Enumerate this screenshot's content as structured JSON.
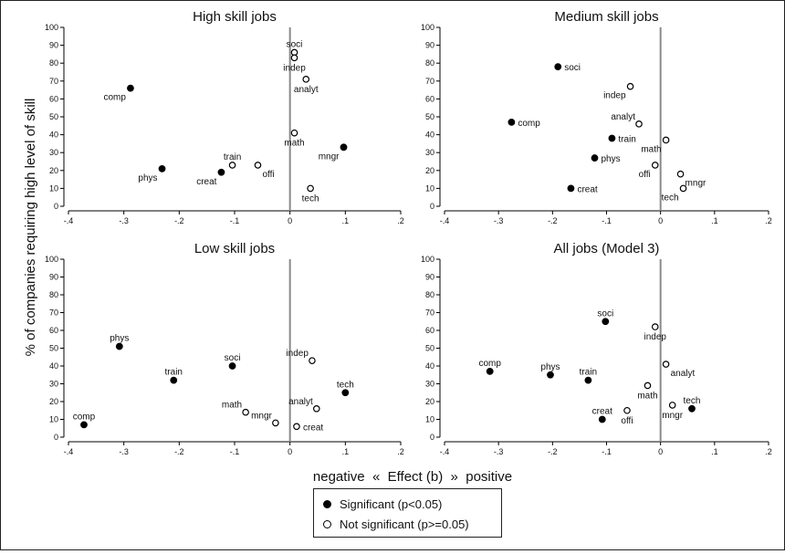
{
  "figure": {
    "y_axis_label": "% of companies requiring high level of skill",
    "x_axis_label": "negative  «  Effect (b)  »  positive"
  },
  "legend": {
    "significant": "Significant (p<0.05)",
    "not_significant": "Not significant (p>=0.05)"
  },
  "chart_data": [
    {
      "type": "scatter",
      "title": "High skill jobs",
      "xlim": [
        -0.4,
        0.2
      ],
      "ylim": [
        0,
        100
      ],
      "x_ticks": [
        "-.4",
        "-.3",
        "-.2",
        "-.1",
        "0",
        ".1",
        ".2"
      ],
      "y_ticks": [
        "0",
        "10",
        "20",
        "30",
        "40",
        "50",
        "60",
        "70",
        "80",
        "90",
        "100"
      ],
      "reference_line_x": 0,
      "points": [
        {
          "label": "soci",
          "x": 0.008,
          "y": 86,
          "significant": false,
          "label_pos": "above"
        },
        {
          "label": "indep",
          "x": 0.008,
          "y": 83,
          "significant": false,
          "label_pos": "below"
        },
        {
          "label": "analyt",
          "x": 0.029,
          "y": 71,
          "significant": false,
          "label_pos": "below"
        },
        {
          "label": "comp",
          "x": -0.288,
          "y": 66,
          "significant": true,
          "label_pos": "belowleft"
        },
        {
          "label": "math",
          "x": 0.008,
          "y": 41,
          "significant": false,
          "label_pos": "below"
        },
        {
          "label": "mngr",
          "x": 0.097,
          "y": 33,
          "significant": true,
          "label_pos": "belowleft"
        },
        {
          "label": "train",
          "x": -0.104,
          "y": 23,
          "significant": false,
          "label_pos": "above"
        },
        {
          "label": "offi",
          "x": -0.058,
          "y": 23,
          "significant": false,
          "label_pos": "belowright"
        },
        {
          "label": "phys",
          "x": -0.231,
          "y": 21,
          "significant": true,
          "label_pos": "belowleft"
        },
        {
          "label": "creat",
          "x": -0.124,
          "y": 19,
          "significant": true,
          "label_pos": "belowleft"
        },
        {
          "label": "tech",
          "x": 0.037,
          "y": 10,
          "significant": false,
          "label_pos": "below"
        }
      ]
    },
    {
      "type": "scatter",
      "title": "Medium skill jobs",
      "xlim": [
        -0.4,
        0.2
      ],
      "ylim": [
        0,
        100
      ],
      "x_ticks": [
        "-.4",
        "-.3",
        "-.2",
        "-.1",
        "0",
        ".1",
        ".2"
      ],
      "y_ticks": [
        "0",
        "10",
        "20",
        "30",
        "40",
        "50",
        "60",
        "70",
        "80",
        "90",
        "100"
      ],
      "reference_line_x": 0,
      "points": [
        {
          "label": "soci",
          "x": -0.19,
          "y": 78,
          "significant": true,
          "label_pos": "right"
        },
        {
          "label": "indep",
          "x": -0.056,
          "y": 67,
          "significant": false,
          "label_pos": "belowleft"
        },
        {
          "label": "comp",
          "x": -0.276,
          "y": 47,
          "significant": true,
          "label_pos": "right"
        },
        {
          "label": "analyt",
          "x": -0.04,
          "y": 46,
          "significant": false,
          "label_pos": "aboveleft"
        },
        {
          "label": "train",
          "x": -0.09,
          "y": 38,
          "significant": true,
          "label_pos": "right"
        },
        {
          "label": "math",
          "x": 0.01,
          "y": 37,
          "significant": false,
          "label_pos": "belowleft"
        },
        {
          "label": "phys",
          "x": -0.122,
          "y": 27,
          "significant": true,
          "label_pos": "right"
        },
        {
          "label": "offi",
          "x": -0.01,
          "y": 23,
          "significant": false,
          "label_pos": "belowleft"
        },
        {
          "label": "mngr",
          "x": 0.037,
          "y": 18,
          "significant": false,
          "label_pos": "belowright"
        },
        {
          "label": "creat",
          "x": -0.166,
          "y": 10,
          "significant": true,
          "label_pos": "right"
        },
        {
          "label": "tech",
          "x": 0.042,
          "y": 10,
          "significant": false,
          "label_pos": "belowleft"
        }
      ]
    },
    {
      "type": "scatter",
      "title": "Low skill jobs",
      "xlim": [
        -0.4,
        0.2
      ],
      "ylim": [
        0,
        100
      ],
      "x_ticks": [
        "-.4",
        "-.3",
        "-.2",
        "-.1",
        "0",
        ".1",
        ".2"
      ],
      "y_ticks": [
        "0",
        "10",
        "20",
        "30",
        "40",
        "50",
        "60",
        "70",
        "80",
        "90",
        "100"
      ],
      "reference_line_x": 0,
      "points": [
        {
          "label": "phys",
          "x": -0.308,
          "y": 51,
          "significant": true,
          "label_pos": "above"
        },
        {
          "label": "indep",
          "x": 0.04,
          "y": 43,
          "significant": false,
          "label_pos": "aboveleft"
        },
        {
          "label": "soci",
          "x": -0.104,
          "y": 40,
          "significant": true,
          "label_pos": "above"
        },
        {
          "label": "train",
          "x": -0.21,
          "y": 32,
          "significant": true,
          "label_pos": "above"
        },
        {
          "label": "tech",
          "x": 0.1,
          "y": 25,
          "significant": true,
          "label_pos": "above"
        },
        {
          "label": "analyt",
          "x": 0.048,
          "y": 16,
          "significant": false,
          "label_pos": "aboveleft"
        },
        {
          "label": "math",
          "x": -0.08,
          "y": 14,
          "significant": false,
          "label_pos": "aboveleft"
        },
        {
          "label": "mngr",
          "x": -0.026,
          "y": 8,
          "significant": false,
          "label_pos": "aboveleft"
        },
        {
          "label": "comp",
          "x": -0.372,
          "y": 7,
          "significant": true,
          "label_pos": "above"
        },
        {
          "label": "creat",
          "x": 0.012,
          "y": 6,
          "significant": false,
          "label_pos": "right"
        }
      ]
    },
    {
      "type": "scatter",
      "title": "All jobs (Model 3)",
      "xlim": [
        -0.4,
        0.2
      ],
      "ylim": [
        0,
        100
      ],
      "x_ticks": [
        "-.4",
        "-.3",
        "-.2",
        "-.1",
        "0",
        ".1",
        ".2"
      ],
      "y_ticks": [
        "0",
        "10",
        "20",
        "30",
        "40",
        "50",
        "60",
        "70",
        "80",
        "90",
        "100"
      ],
      "reference_line_x": 0,
      "points": [
        {
          "label": "soci",
          "x": -0.102,
          "y": 65,
          "significant": true,
          "label_pos": "above"
        },
        {
          "label": "indep",
          "x": -0.01,
          "y": 62,
          "significant": false,
          "label_pos": "below"
        },
        {
          "label": "analyt",
          "x": 0.01,
          "y": 41,
          "significant": false,
          "label_pos": "belowright"
        },
        {
          "label": "comp",
          "x": -0.316,
          "y": 37,
          "significant": true,
          "label_pos": "above"
        },
        {
          "label": "phys",
          "x": -0.204,
          "y": 35,
          "significant": true,
          "label_pos": "above"
        },
        {
          "label": "train",
          "x": -0.134,
          "y": 32,
          "significant": true,
          "label_pos": "above"
        },
        {
          "label": "math",
          "x": -0.024,
          "y": 29,
          "significant": false,
          "label_pos": "below"
        },
        {
          "label": "mngr",
          "x": 0.022,
          "y": 18,
          "significant": false,
          "label_pos": "below"
        },
        {
          "label": "tech",
          "x": 0.058,
          "y": 16,
          "significant": true,
          "label_pos": "above"
        },
        {
          "label": "offi",
          "x": -0.062,
          "y": 15,
          "significant": false,
          "label_pos": "below"
        },
        {
          "label": "creat",
          "x": -0.108,
          "y": 10,
          "significant": true,
          "label_pos": "above"
        }
      ]
    }
  ]
}
